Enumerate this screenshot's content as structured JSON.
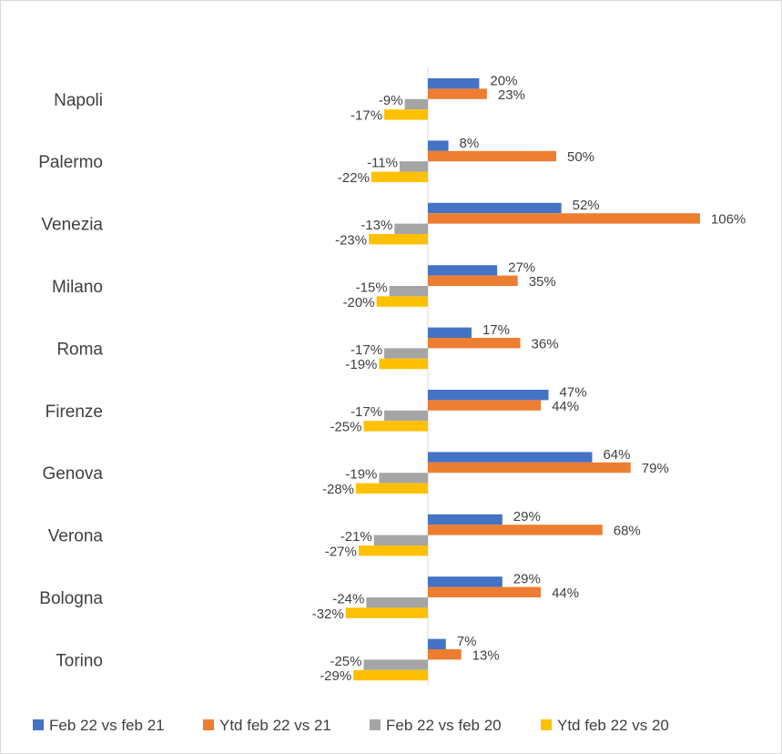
{
  "chart_data": {
    "type": "bar",
    "orientation": "horizontal",
    "categories": [
      "Napoli",
      "Palermo",
      "Venezia",
      "Milano",
      "Roma",
      "Firenze",
      "Genova",
      "Verona",
      "Bologna",
      "Torino"
    ],
    "series": [
      {
        "name": "Feb 22 vs feb 21",
        "color": "#4472c4",
        "values": [
          20,
          8,
          52,
          27,
          17,
          47,
          64,
          29,
          29,
          7
        ],
        "labels": [
          "20%",
          "8%",
          "52%",
          "27%",
          "17%",
          "47%",
          "64%",
          "29%",
          "29%",
          "7%"
        ]
      },
      {
        "name": "Ytd feb 22 vs 21",
        "color": "#ed7d31",
        "values": [
          23,
          50,
          106,
          35,
          36,
          44,
          79,
          68,
          44,
          13
        ],
        "labels": [
          "23%",
          "50%",
          "106%",
          "35%",
          "36%",
          "44%",
          "79%",
          "68%",
          "44%",
          "13%"
        ]
      },
      {
        "name": "Feb 22 vs feb 20",
        "color": "#a5a5a5",
        "values": [
          -9,
          -11,
          -13,
          -15,
          -17,
          -17,
          -19,
          -21,
          -24,
          -25
        ],
        "labels": [
          "-9%",
          "-11%",
          "-13%",
          "-15%",
          "-17%",
          "-17%",
          "-19%",
          "-21%",
          "-24%",
          "-25%"
        ]
      },
      {
        "name": "Ytd feb 22 vs 20",
        "color": "#ffc000",
        "values": [
          -17,
          -22,
          -23,
          -20,
          -19,
          -25,
          -28,
          -27,
          -32,
          -29
        ],
        "labels": [
          "-17%",
          "-22%",
          "-23%",
          "-20%",
          "-19%",
          "-25%",
          "-28%",
          "-27%",
          "-32%",
          "-29%"
        ]
      }
    ],
    "xlim": [
      -50,
      120
    ],
    "value_unit": "%",
    "grid": false,
    "legend": "bottom"
  }
}
